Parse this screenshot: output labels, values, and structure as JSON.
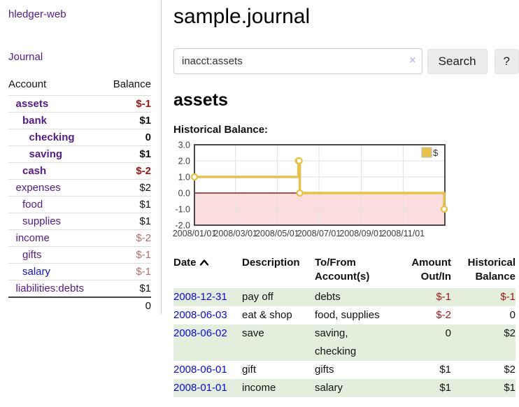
{
  "app": {
    "brand": "hledger-web",
    "nav_journal": "Journal"
  },
  "sidebar": {
    "columns": {
      "account": "Account",
      "balance": "Balance"
    },
    "accounts": [
      {
        "name": "assets",
        "balance": "$-1",
        "level": 1,
        "bold": true,
        "negative": "strong",
        "link": "purple"
      },
      {
        "name": "bank",
        "balance": "$1",
        "level": 2,
        "bold": true,
        "negative": null,
        "link": "purple"
      },
      {
        "name": "checking",
        "balance": "0",
        "level": 3,
        "bold": true,
        "negative": null,
        "link": "purple"
      },
      {
        "name": "saving",
        "balance": "$1",
        "level": 3,
        "bold": true,
        "negative": null,
        "link": "purple"
      },
      {
        "name": "cash",
        "balance": "$-2",
        "level": 2,
        "bold": true,
        "negative": "strong",
        "link": "purple"
      },
      {
        "name": "expenses",
        "balance": "$2",
        "level": 1,
        "bold": false,
        "negative": null,
        "link": "purple"
      },
      {
        "name": "food",
        "balance": "$1",
        "level": 2,
        "bold": false,
        "negative": null,
        "link": "purple"
      },
      {
        "name": "supplies",
        "balance": "$1",
        "level": 2,
        "bold": false,
        "negative": null,
        "link": "purple"
      },
      {
        "name": "income",
        "balance": "$-2",
        "level": 1,
        "bold": false,
        "negative": "soft",
        "link": "purple"
      },
      {
        "name": "gifts",
        "balance": "$-1",
        "level": 2,
        "bold": false,
        "negative": "soft",
        "link": "purple"
      },
      {
        "name": "salary",
        "balance": "$-1",
        "level": 2,
        "bold": false,
        "negative": "soft",
        "link": "blue"
      },
      {
        "name": "liabilities:debts",
        "balance": "$1",
        "level": 1,
        "bold": false,
        "negative": null,
        "link": "purple"
      }
    ],
    "total": "0"
  },
  "header": {
    "title": "sample.journal"
  },
  "search": {
    "value": "inacct:assets",
    "clear_icon": "×",
    "button_label": "Search",
    "help_label": "?"
  },
  "account_page": {
    "title": "assets",
    "chart_label": "Historical Balance:"
  },
  "chart_data": {
    "type": "line",
    "step": true,
    "title": "Historical Balance",
    "series": [
      {
        "name": "$",
        "color": "#e8c14c",
        "points": [
          [
            "2008-01-01",
            1
          ],
          [
            "2008-06-01",
            2
          ],
          [
            "2008-06-02",
            2
          ],
          [
            "2008-06-03",
            0
          ],
          [
            "2008-12-31",
            -1
          ]
        ]
      }
    ],
    "ylim": [
      -2,
      3
    ],
    "yticks": [
      "3.0",
      "2.0",
      "1.0",
      "0.0",
      "-1.0",
      "-2.0"
    ],
    "xticks": [
      "2008/01/01",
      "2008/03/01",
      "2008/05/01",
      "2008/07/01",
      "2008/09/01",
      "2008/11/01"
    ],
    "grid": true,
    "legend_position": "top-right",
    "negative_region_fill": "#fbdddd",
    "zero_line_color": "#8b1a1a",
    "tick_color": "#3d3d3d",
    "border_color": "#4a4a4a"
  },
  "register": {
    "columns": {
      "date": "Date",
      "description": "Description",
      "accounts": "To/From Account(s)",
      "amount": "Amount Out/In",
      "balance": "Historical Balance"
    },
    "sort_icon": "chevron-up",
    "rows": [
      {
        "date": "2008-12-31",
        "description": "pay off",
        "accounts": "debts",
        "amount": "$-1",
        "balance": "$-1",
        "amount_negative": true,
        "balance_negative": true
      },
      {
        "date": "2008-06-03",
        "description": "eat & shop",
        "accounts": "food, supplies",
        "amount": "$-2",
        "balance": "0",
        "amount_negative": true,
        "balance_negative": false
      },
      {
        "date": "2008-06-02",
        "description": "save",
        "accounts": "saving, checking",
        "amount": "0",
        "balance": "$2",
        "amount_negative": false,
        "balance_negative": false
      },
      {
        "date": "2008-06-01",
        "description": "gift",
        "accounts": "gifts",
        "amount": "$1",
        "balance": "$2",
        "amount_negative": false,
        "balance_negative": false
      },
      {
        "date": "2008-01-01",
        "description": "income",
        "accounts": "salary",
        "amount": "$1",
        "balance": "$1",
        "amount_negative": false,
        "balance_negative": false
      }
    ]
  },
  "colors": {
    "link_purple": "#551a8b",
    "link_blue": "#1212d2",
    "negative_strong": "#9e1616",
    "negative_soft": "#b46c6c",
    "row_stripe_green": "#e3eedd",
    "series_gold": "#e8c14c"
  }
}
